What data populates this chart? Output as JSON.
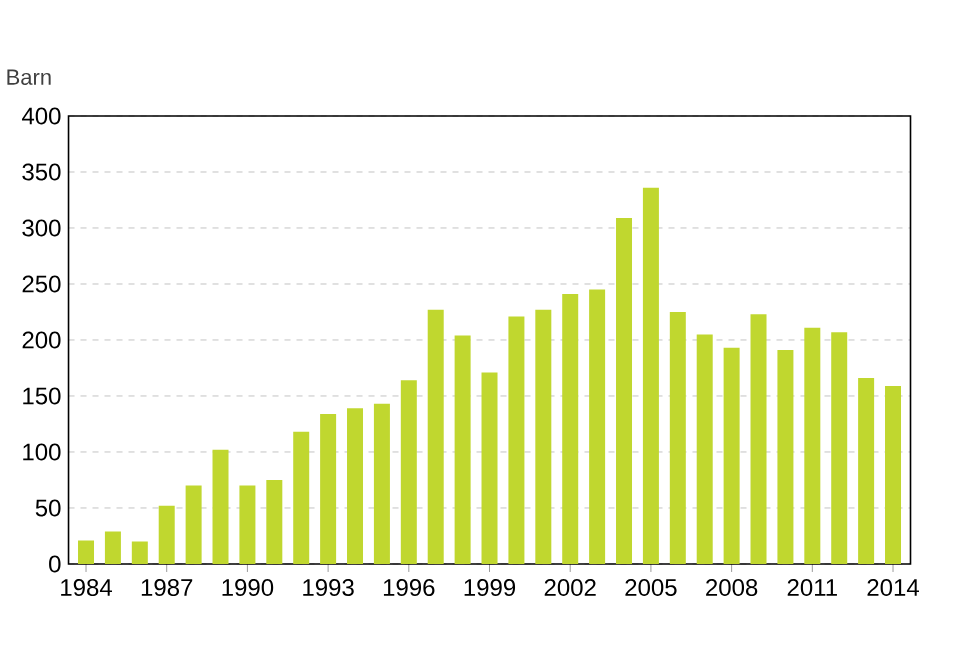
{
  "chart_data": {
    "type": "bar",
    "ylabel": "Barn",
    "categories": [
      "1984",
      null,
      null,
      "1987",
      null,
      null,
      "1990",
      null,
      null,
      "1993",
      null,
      null,
      "1996",
      null,
      null,
      "1999",
      null,
      null,
      "2002",
      null,
      null,
      "2005",
      null,
      null,
      "2008",
      null,
      null,
      "2011",
      null,
      null,
      "2014"
    ],
    "values": [
      21,
      29,
      20,
      52,
      70,
      102,
      70,
      75,
      118,
      134,
      139,
      143,
      164,
      227,
      204,
      171,
      221,
      227,
      241,
      245,
      309,
      336,
      225,
      205,
      193,
      223,
      191,
      211,
      207,
      166,
      159
    ],
    "color": "#c0d72f",
    "ylim": [
      0,
      400
    ],
    "yticks": [
      0,
      50,
      100,
      150,
      200,
      250,
      300,
      350,
      400
    ],
    "grid": "y"
  }
}
